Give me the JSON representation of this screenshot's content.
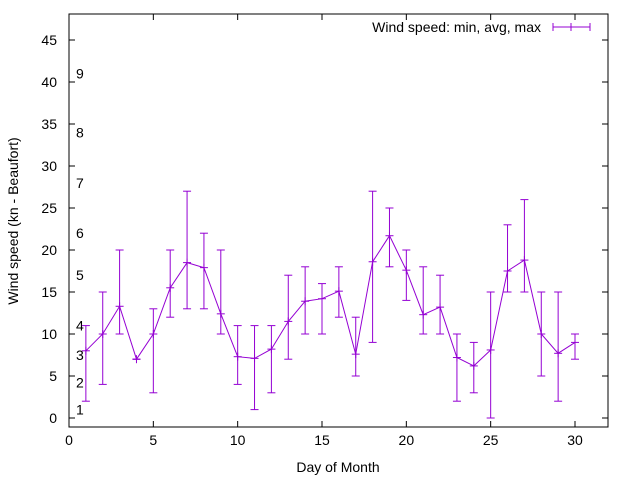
{
  "chart_data": {
    "type": "line",
    "subtype": "errorbars",
    "title": "",
    "xlabel": "Day of Month",
    "ylabel": "Wind speed (kn - Beaufort)",
    "xlim": [
      0,
      32
    ],
    "ylim": [
      -1,
      48
    ],
    "xticks": [
      0,
      5,
      10,
      15,
      20,
      25,
      30
    ],
    "yticks": [
      0,
      5,
      10,
      15,
      20,
      25,
      30,
      35,
      40,
      45
    ],
    "beaufort_labels": [
      {
        "label": "1",
        "y": 1
      },
      {
        "label": "2",
        "y": 4.2
      },
      {
        "label": "3",
        "y": 7.5
      },
      {
        "label": "4",
        "y": 11
      },
      {
        "label": "5",
        "y": 17
      },
      {
        "label": "6",
        "y": 22
      },
      {
        "label": "7",
        "y": 28
      },
      {
        "label": "8",
        "y": 34
      },
      {
        "label": "9",
        "y": 41
      }
    ],
    "grid": false,
    "legend_position": "top-right",
    "series": [
      {
        "name": "Wind speed: min, avg, max",
        "color": "#9400d3",
        "x": [
          1,
          2,
          3,
          4,
          5,
          6,
          7,
          8,
          9,
          10,
          11,
          12,
          13,
          14,
          15,
          16,
          17,
          18,
          19,
          20,
          21,
          22,
          23,
          24,
          25,
          26,
          27,
          28,
          29,
          30
        ],
        "avg": [
          8,
          10,
          13.3,
          7,
          10,
          15.5,
          18.5,
          17.9,
          12.4,
          7.3,
          7.1,
          8.2,
          11.5,
          13.9,
          14.2,
          15.1,
          7.6,
          18.6,
          21.7,
          17.6,
          12.3,
          13.2,
          7.2,
          6.2,
          8.1,
          17.5,
          18.8,
          10,
          7.7,
          9
        ],
        "min": [
          2,
          4,
          10,
          7,
          3,
          12,
          13,
          13,
          10,
          4,
          1,
          3,
          7,
          10,
          10,
          12,
          5,
          9,
          18,
          14,
          10,
          10,
          2,
          3,
          0,
          15,
          15,
          5,
          2,
          7
        ],
        "max": [
          11,
          15,
          20,
          7,
          13,
          20,
          27,
          22,
          20,
          11,
          11,
          11,
          17,
          18,
          16,
          18,
          12,
          27,
          25,
          20,
          18,
          17,
          10,
          9,
          15,
          23,
          26,
          15,
          15,
          10
        ]
      }
    ]
  }
}
